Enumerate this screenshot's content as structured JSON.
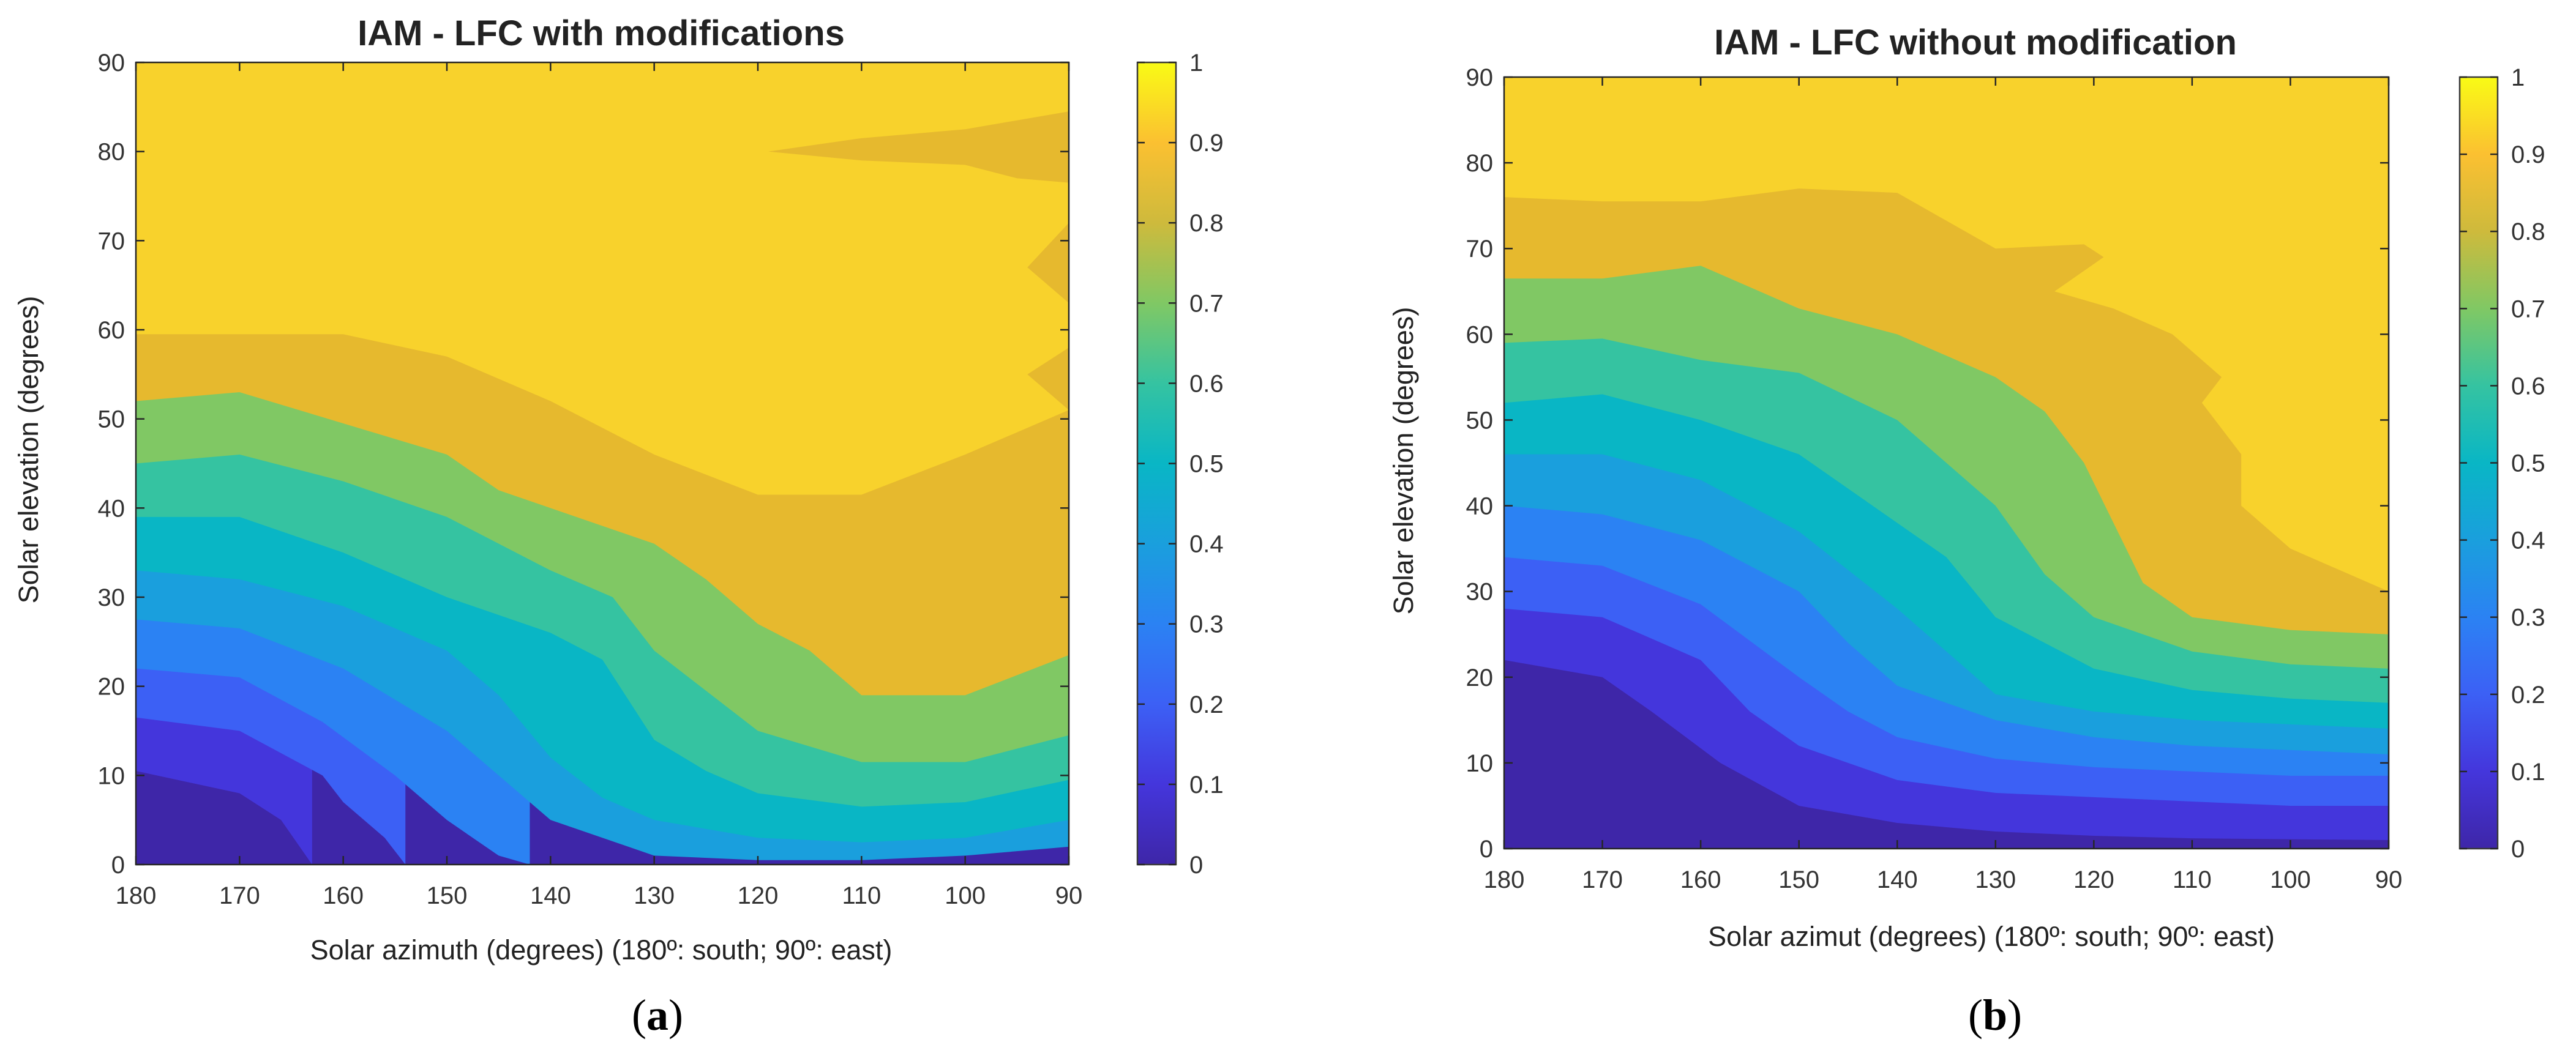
{
  "figure": {
    "panels": [
      {
        "label_open": "(",
        "label_letter": "a",
        "label_close": ")"
      },
      {
        "label_open": "(",
        "label_letter": "b",
        "label_close": ")"
      }
    ]
  },
  "chart_data": [
    {
      "type": "heatmap",
      "subtype": "filled-contour",
      "title": "IAM - LFC with modifications",
      "xlabel": "Solar azimuth (degrees) (180º: south; 90º: east)",
      "ylabel": "Solar elevation (degrees)",
      "xlim": [
        180,
        90
      ],
      "ylim": [
        0,
        90
      ],
      "xticks": [
        "180",
        "170",
        "160",
        "150",
        "140",
        "130",
        "120",
        "110",
        "100",
        "90"
      ],
      "yticks": [
        "0",
        "10",
        "20",
        "30",
        "40",
        "50",
        "60",
        "70",
        "80",
        "90"
      ],
      "colorbar": {
        "min": 0,
        "max": 1,
        "ticks": [
          "0",
          "0.1",
          "0.2",
          "0.3",
          "0.4",
          "0.5",
          "0.6",
          "0.7",
          "0.8",
          "0.9",
          "1"
        ]
      },
      "levels": [
        0.1,
        0.2,
        0.3,
        0.4,
        0.5,
        0.6,
        0.7,
        0.8,
        0.9
      ],
      "contours": [
        {
          "level": 0.1,
          "x": [
            180,
            170,
            166,
            163
          ],
          "y": [
            10.5,
            8,
            5,
            0
          ]
        },
        {
          "level": 0.2,
          "x": [
            180,
            170,
            162,
            160,
            156,
            154
          ],
          "y": [
            16.5,
            15,
            10,
            7,
            3,
            0
          ]
        },
        {
          "level": 0.3,
          "x": [
            180,
            170,
            162,
            155,
            150,
            145,
            142
          ],
          "y": [
            22,
            21,
            16,
            10,
            5,
            1,
            0
          ]
        },
        {
          "level": 0.4,
          "x": [
            180,
            170,
            160,
            150,
            145,
            140,
            135,
            130,
            120,
            110,
            100,
            90
          ],
          "y": [
            27.5,
            26.5,
            22,
            15,
            10,
            5,
            3,
            1,
            0.5,
            0.5,
            1,
            2
          ]
        },
        {
          "level": 0.5,
          "x": [
            180,
            170,
            160,
            150,
            145,
            140,
            135,
            130,
            120,
            110,
            100,
            90
          ],
          "y": [
            33,
            32,
            29,
            24,
            19,
            12,
            7.5,
            5,
            3,
            2.5,
            3,
            5
          ]
        },
        {
          "level": 0.6,
          "x": [
            180,
            170,
            160,
            150,
            140,
            135,
            130,
            125,
            120,
            110,
            100,
            90
          ],
          "y": [
            39,
            39,
            35,
            30,
            26,
            23,
            14,
            10.5,
            8,
            6.5,
            7,
            9.5
          ]
        },
        {
          "level": 0.7,
          "x": [
            180,
            170,
            160,
            150,
            140,
            134,
            130,
            120,
            110,
            100,
            90
          ],
          "y": [
            45,
            46,
            43,
            39,
            33,
            30,
            24,
            15,
            11.5,
            11.5,
            14.5
          ]
        },
        {
          "level": 0.8,
          "x": [
            180,
            170,
            160,
            150,
            145,
            140,
            130,
            125,
            120,
            115,
            110,
            100,
            90
          ],
          "y": [
            52,
            53,
            49.5,
            46,
            42,
            40,
            36,
            32,
            27,
            24,
            19,
            19,
            23.5
          ]
        },
        {
          "level": 0.9,
          "x": [
            180,
            170,
            160,
            150,
            140,
            130,
            120,
            110,
            100,
            90
          ],
          "y": [
            59.5,
            59.5,
            59.5,
            57,
            52,
            46,
            41.5,
            41.5,
            46,
            51
          ]
        }
      ],
      "islands": [
        {
          "level": 0.9,
          "x": [
            90,
            100,
            110,
            119,
            110,
            100,
            95,
            90
          ],
          "y": [
            84.5,
            82.5,
            81.5,
            80,
            79,
            78.5,
            77,
            76.5
          ]
        },
        {
          "level": 0.9,
          "x": [
            90,
            94,
            90
          ],
          "y": [
            72,
            67,
            63
          ]
        },
        {
          "level": 0.9,
          "x": [
            90,
            94,
            90
          ],
          "y": [
            58,
            55,
            51
          ]
        }
      ]
    },
    {
      "type": "heatmap",
      "subtype": "filled-contour",
      "title": "IAM - LFC without modification",
      "xlabel": "Solar azimut (degrees) (180º: south; 90º: east)",
      "ylabel": "Solar elevation (degrees)",
      "xlim": [
        180,
        90
      ],
      "ylim": [
        0,
        90
      ],
      "xticks": [
        "180",
        "170",
        "160",
        "150",
        "140",
        "130",
        "120",
        "110",
        "100",
        "90"
      ],
      "yticks": [
        "0",
        "10",
        "20",
        "30",
        "40",
        "50",
        "60",
        "70",
        "80",
        "90"
      ],
      "colorbar": {
        "min": 0,
        "max": 1,
        "ticks": [
          "0",
          "0.1",
          "0.2",
          "0.3",
          "0.4",
          "0.5",
          "0.6",
          "0.7",
          "0.8",
          "0.9",
          "1"
        ]
      },
      "levels": [
        0.1,
        0.2,
        0.3,
        0.4,
        0.5,
        0.6,
        0.7,
        0.8,
        0.9
      ],
      "contours": [
        {
          "level": 0.1,
          "x": [
            180,
            170,
            165,
            158,
            150,
            140,
            130,
            120,
            110,
            100,
            90
          ],
          "y": [
            22,
            20,
            16,
            10,
            5,
            3,
            2,
            1.5,
            1.2,
            1.1,
            1
          ]
        },
        {
          "level": 0.2,
          "x": [
            180,
            170,
            160,
            155,
            150,
            140,
            130,
            120,
            110,
            100,
            90
          ],
          "y": [
            28,
            27,
            22,
            16,
            12,
            8,
            6.5,
            6,
            5.5,
            5,
            5
          ]
        },
        {
          "level": 0.3,
          "x": [
            180,
            170,
            160,
            150,
            145,
            140,
            130,
            120,
            110,
            100,
            90
          ],
          "y": [
            34,
            33,
            28.5,
            20,
            16,
            13,
            10.5,
            9.5,
            9,
            8.5,
            8.5
          ]
        },
        {
          "level": 0.4,
          "x": [
            180,
            170,
            160,
            150,
            145,
            140,
            130,
            120,
            110,
            100,
            90
          ],
          "y": [
            40,
            39,
            36,
            30,
            24,
            19,
            15,
            13,
            12,
            11.5,
            11
          ]
        },
        {
          "level": 0.5,
          "x": [
            180,
            170,
            160,
            150,
            140,
            135,
            130,
            120,
            110,
            100,
            90
          ],
          "y": [
            46,
            46,
            43,
            37,
            28,
            23,
            18,
            16,
            15,
            14.5,
            14
          ]
        },
        {
          "level": 0.6,
          "x": [
            180,
            170,
            160,
            150,
            140,
            135,
            130,
            120,
            110,
            100,
            90
          ],
          "y": [
            52,
            53,
            50,
            46,
            38,
            34,
            27,
            21,
            18.5,
            17.5,
            17
          ]
        },
        {
          "level": 0.7,
          "x": [
            180,
            170,
            160,
            150,
            140,
            130,
            125,
            120,
            110,
            100,
            90
          ],
          "y": [
            59,
            59.5,
            57,
            55.5,
            50,
            40,
            32,
            27,
            23,
            21.5,
            21
          ]
        },
        {
          "level": 0.8,
          "x": [
            180,
            170,
            160,
            150,
            140,
            130,
            125,
            121,
            118,
            115,
            110,
            100,
            90
          ],
          "y": [
            66.5,
            66.5,
            68,
            63,
            60,
            55,
            51,
            45,
            38,
            31,
            27,
            25.5,
            25
          ]
        },
        {
          "level": 0.9,
          "x": [
            180,
            170,
            160,
            150,
            140,
            130,
            121,
            119,
            124,
            118,
            112,
            107,
            109,
            105,
            105,
            102,
            100,
            90
          ],
          "y": [
            76,
            75.5,
            75.5,
            77,
            76.5,
            70,
            70.5,
            69,
            65,
            63,
            60,
            55,
            52,
            46,
            40,
            37,
            35,
            30
          ]
        }
      ],
      "islands": []
    }
  ]
}
